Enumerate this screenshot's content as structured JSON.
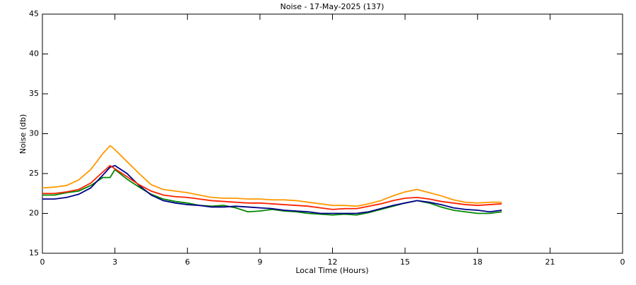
{
  "chart_data": {
    "type": "line",
    "title": "Noise - 17-May-2025 (137)",
    "xlabel": "Local Time (Hours)",
    "ylabel": "Noise (db)",
    "x": [
      0,
      0.5,
      1,
      1.5,
      2,
      2.5,
      2.8,
      3,
      3.5,
      4,
      4.5,
      5,
      5.5,
      6,
      6.5,
      7,
      7.5,
      8,
      8.5,
      9,
      9.5,
      10,
      10.5,
      11,
      11.5,
      12,
      12.5,
      13,
      13.5,
      14,
      14.5,
      15,
      15.5,
      16,
      16.5,
      17,
      17.5,
      18,
      18.5,
      19
    ],
    "series": [
      {
        "color": "#ff9900",
        "values": [
          23.2,
          23.3,
          23.5,
          24.2,
          25.5,
          27.5,
          28.5,
          28.0,
          26.5,
          25.0,
          23.6,
          23.0,
          22.8,
          22.6,
          22.3,
          22.0,
          21.9,
          21.9,
          21.8,
          21.8,
          21.7,
          21.7,
          21.6,
          21.4,
          21.2,
          21.0,
          21.0,
          20.9,
          21.2,
          21.6,
          22.2,
          22.7,
          23.0,
          22.6,
          22.2,
          21.7,
          21.4,
          21.3,
          21.4,
          21.4
        ]
      },
      {
        "color": "#008800",
        "values": [
          22.3,
          22.3,
          22.6,
          22.8,
          23.5,
          24.5,
          24.5,
          25.5,
          24.3,
          23.3,
          22.4,
          21.8,
          21.5,
          21.3,
          21.0,
          20.9,
          21.0,
          20.7,
          20.2,
          20.3,
          20.5,
          20.3,
          20.2,
          20.0,
          19.9,
          19.8,
          19.9,
          19.8,
          20.1,
          20.5,
          20.9,
          21.3,
          21.6,
          21.3,
          20.8,
          20.4,
          20.2,
          20.0,
          20.0,
          20.2
        ]
      },
      {
        "color": "#000088",
        "values": [
          21.8,
          21.8,
          22.0,
          22.4,
          23.2,
          24.8,
          25.8,
          26.0,
          25.0,
          23.5,
          22.3,
          21.6,
          21.3,
          21.1,
          21.0,
          20.8,
          20.8,
          20.9,
          20.8,
          20.7,
          20.6,
          20.4,
          20.3,
          20.2,
          20.0,
          20.0,
          20.0,
          20.0,
          20.2,
          20.6,
          21.0,
          21.3,
          21.6,
          21.4,
          21.1,
          20.7,
          20.5,
          20.4,
          20.2,
          20.4
        ]
      },
      {
        "color": "#ff2200",
        "values": [
          22.5,
          22.5,
          22.7,
          23.0,
          23.8,
          25.2,
          26.0,
          25.6,
          24.6,
          23.6,
          22.8,
          22.3,
          22.1,
          22.0,
          21.8,
          21.6,
          21.5,
          21.4,
          21.3,
          21.3,
          21.2,
          21.1,
          21.0,
          20.9,
          20.7,
          20.5,
          20.6,
          20.6,
          20.9,
          21.2,
          21.6,
          21.9,
          22.0,
          21.8,
          21.5,
          21.3,
          21.1,
          21.0,
          21.1,
          21.2
        ]
      }
    ],
    "xlim": [
      0,
      24
    ],
    "xticks": [
      0,
      3,
      6,
      9,
      12,
      15,
      18,
      21,
      {
        "value": 24,
        "label": "0"
      }
    ],
    "ylim": [
      15,
      45
    ],
    "yticks": [
      15,
      20,
      25,
      30,
      35,
      40,
      45
    ]
  }
}
